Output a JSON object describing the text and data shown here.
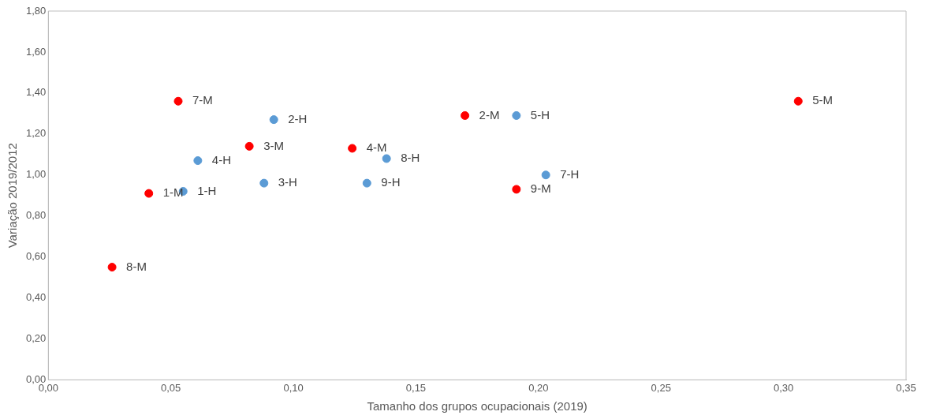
{
  "chart_data": {
    "type": "scatter",
    "xlabel": "Tamanho dos grupos ocupacionais (2019)",
    "ylabel": "Variação 2019/2012",
    "series": [
      {
        "color": "#ff0000",
        "x": [
          0.041,
          0.17,
          0.082,
          0.124,
          0.306,
          0.053,
          0.026,
          0.191
        ],
        "values": [
          0.91,
          1.29,
          1.14,
          1.13,
          1.36,
          1.36,
          0.55,
          0.93
        ]
      },
      {
        "color": "#5b9bd5",
        "x": [
          0.055,
          0.092,
          0.088,
          0.061,
          0.191,
          0.203,
          0.138,
          0.13
        ],
        "values": [
          0.92,
          1.27,
          0.96,
          1.07,
          1.29,
          1.0,
          1.08,
          0.96
        ]
      }
    ],
    "annotations": [
      {
        "text": "1-M",
        "x": 0.041,
        "y": 0.91
      },
      {
        "text": "2-M",
        "x": 0.17,
        "y": 1.29
      },
      {
        "text": "3-M",
        "x": 0.082,
        "y": 1.14
      },
      {
        "text": "4-M",
        "x": 0.124,
        "y": 1.13
      },
      {
        "text": "5-M",
        "x": 0.306,
        "y": 1.36
      },
      {
        "text": "7-M",
        "x": 0.053,
        "y": 1.36
      },
      {
        "text": "8-M",
        "x": 0.026,
        "y": 0.55
      },
      {
        "text": "9-M",
        "x": 0.191,
        "y": 0.93
      },
      {
        "text": "1-H",
        "x": 0.055,
        "y": 0.92
      },
      {
        "text": "2-H",
        "x": 0.092,
        "y": 1.27
      },
      {
        "text": "3-H",
        "x": 0.088,
        "y": 0.96
      },
      {
        "text": "4-H",
        "x": 0.061,
        "y": 1.07
      },
      {
        "text": "5-H",
        "x": 0.191,
        "y": 1.29
      },
      {
        "text": "7-H",
        "x": 0.203,
        "y": 1.0
      },
      {
        "text": "8-H",
        "x": 0.138,
        "y": 1.08
      },
      {
        "text": "9-H",
        "x": 0.13,
        "y": 0.96
      }
    ],
    "xlim": [
      0,
      0.35
    ],
    "ylim": [
      0,
      1.8
    ],
    "xticks": [
      {
        "value": 0,
        "label": "0,00"
      },
      {
        "value": 0.05,
        "label": "0,05"
      },
      {
        "value": 0.1,
        "label": "0,10"
      },
      {
        "value": 0.15,
        "label": "0,15"
      },
      {
        "value": 0.2,
        "label": "0,20"
      },
      {
        "value": 0.25,
        "label": "0,25"
      },
      {
        "value": 0.3,
        "label": "0,30"
      },
      {
        "value": 0.35,
        "label": "0,35"
      }
    ],
    "yticks": [
      {
        "value": 0,
        "label": "0,00"
      },
      {
        "value": 0.2,
        "label": "0,20"
      },
      {
        "value": 0.4,
        "label": "0,40"
      },
      {
        "value": 0.6,
        "label": "0,60"
      },
      {
        "value": 0.8,
        "label": "0,80"
      },
      {
        "value": 1.0,
        "label": "1,00"
      },
      {
        "value": 1.2,
        "label": "1,20"
      },
      {
        "value": 1.4,
        "label": "1,40"
      },
      {
        "value": 1.6,
        "label": "1,60"
      },
      {
        "value": 1.8,
        "label": "1,80"
      }
    ],
    "grid": false,
    "legend": false,
    "marker": "circle"
  }
}
